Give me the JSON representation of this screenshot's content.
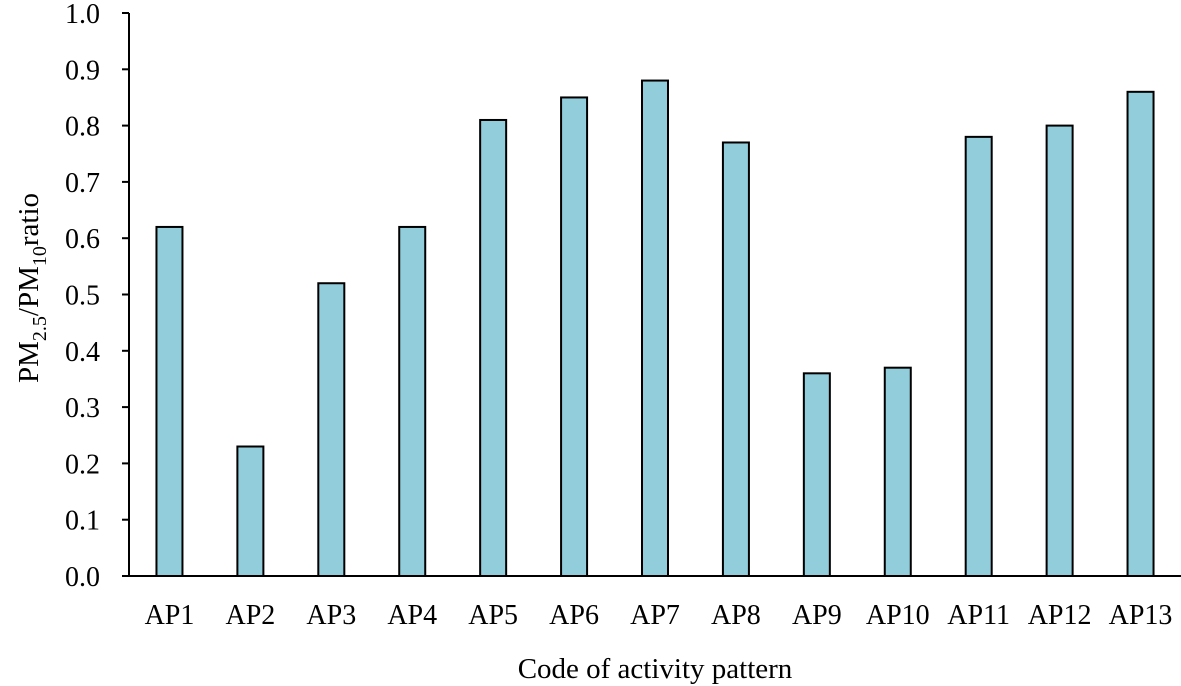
{
  "chart_data": {
    "type": "bar",
    "title": "",
    "xlabel": "Code of activity pattern",
    "ylabel": {
      "pre": "PM",
      "sub1": "2.5",
      "mid": "/PM",
      "sub2": "10",
      "post": "ratio"
    },
    "categories": [
      "AP1",
      "AP2",
      "AP3",
      "AP4",
      "AP5",
      "AP6",
      "AP7",
      "AP8",
      "AP9",
      "AP10",
      "AP11",
      "AP12",
      "AP13"
    ],
    "values": [
      0.62,
      0.23,
      0.52,
      0.62,
      0.81,
      0.85,
      0.88,
      0.77,
      0.36,
      0.37,
      0.78,
      0.8,
      0.86
    ],
    "ylim": [
      0.0,
      1.0
    ],
    "yticks": [
      "0.0",
      "0.1",
      "0.2",
      "0.3",
      "0.4",
      "0.5",
      "0.6",
      "0.7",
      "0.8",
      "0.9",
      "1.0"
    ],
    "grid": false,
    "legend": "none",
    "colors": {
      "bar_fill": "#92cddc",
      "bar_stroke": "#000000",
      "axis": "#000000"
    }
  }
}
